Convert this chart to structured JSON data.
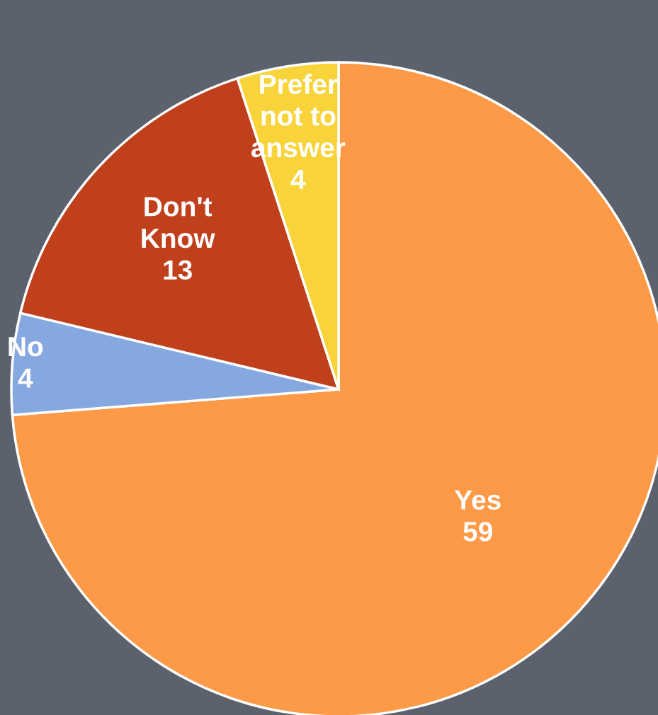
{
  "chart_data": {
    "type": "pie",
    "categories": [
      "Yes",
      "No",
      "Don't Know",
      "Prefer not to answer"
    ],
    "values": [
      59,
      4,
      13,
      4
    ],
    "colors": [
      "#fd9a47",
      "#86a8e0",
      "#c0401c",
      "#f8d43a"
    ],
    "data_labels": true
  }
}
